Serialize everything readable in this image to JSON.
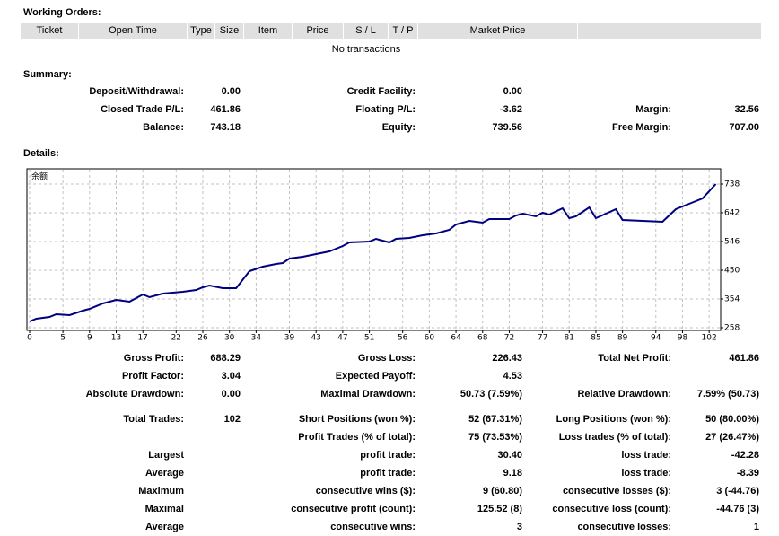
{
  "working_orders": {
    "title": "Working Orders:",
    "headers": [
      "Ticket",
      "Open Time",
      "Type",
      "Size",
      "Item",
      "Price",
      "S / L",
      "T / P",
      "Market Price"
    ],
    "empty": "No transactions"
  },
  "summary": {
    "title": "Summary:",
    "rows": [
      [
        "Deposit/Withdrawal:",
        "0.00",
        "Credit Facility:",
        "0.00"
      ],
      [
        "Closed Trade P/L:",
        "461.86",
        "Floating P/L:",
        "-3.62",
        "Margin:",
        "32.56"
      ],
      [
        "Balance:",
        "743.18",
        "Equity:",
        "739.56",
        "Free Margin:",
        "707.00"
      ]
    ]
  },
  "details_title": "Details:",
  "chart_data": {
    "type": "line",
    "label": "余额",
    "x": [
      0,
      1,
      3,
      4,
      6,
      8,
      9,
      11,
      13,
      15,
      16,
      17,
      18,
      20,
      23,
      25,
      26,
      27,
      29,
      31,
      33,
      35,
      37,
      38,
      39,
      41,
      43,
      45,
      47,
      48,
      51,
      52,
      54,
      55,
      57,
      59,
      61,
      63,
      64,
      66,
      68,
      69,
      72,
      73,
      74,
      76,
      77,
      78,
      80,
      81,
      82,
      84,
      85,
      88,
      89,
      92,
      95,
      97,
      99,
      101,
      103
    ],
    "values": [
      279,
      288,
      294,
      303,
      300,
      315,
      321,
      339,
      351,
      345,
      357,
      369,
      360,
      372,
      378,
      384,
      393,
      399,
      390,
      390,
      447,
      462,
      471,
      474,
      489,
      495,
      504,
      513,
      531,
      543,
      546,
      555,
      543,
      555,
      558,
      567,
      573,
      585,
      603,
      615,
      609,
      621,
      621,
      633,
      639,
      630,
      642,
      636,
      657,
      624,
      630,
      660,
      624,
      654,
      618,
      615,
      612,
      654,
      672,
      690,
      738
    ],
    "color": "#000080",
    "xlim": [
      0,
      104
    ],
    "ylim": [
      249,
      789
    ],
    "xticks": [
      0,
      5,
      9,
      13,
      17,
      22,
      26,
      30,
      34,
      39,
      43,
      47,
      51,
      56,
      60,
      64,
      68,
      72,
      77,
      81,
      85,
      89,
      94,
      98,
      102
    ],
    "yticks": [
      258,
      354,
      450,
      546,
      642,
      738
    ],
    "grid": true
  },
  "stats": {
    "rows": [
      [
        "Gross Profit:",
        "688.29",
        "Gross Loss:",
        "226.43",
        "Total Net Profit:",
        "461.86"
      ],
      [
        "Profit Factor:",
        "3.04",
        "Expected Payoff:",
        "4.53"
      ],
      [
        "Absolute Drawdown:",
        "0.00",
        "Maximal Drawdown:",
        "50.73 (7.59%)",
        "Relative Drawdown:",
        "7.59% (50.73)"
      ],
      [
        "Total Trades:",
        "102",
        "Short Positions (won %):",
        "52 (67.31%)",
        "Long Positions (won %):",
        "50 (80.00%)"
      ],
      [
        null,
        null,
        "Profit Trades (% of total):",
        "75 (73.53%)",
        "Loss trades (% of total):",
        "27 (26.47%)"
      ],
      [
        "Largest",
        null,
        "profit trade:",
        "30.40",
        "loss trade:",
        "-42.28"
      ],
      [
        "Average",
        null,
        "profit trade:",
        "9.18",
        "loss trade:",
        "-8.39"
      ],
      [
        "Maximum",
        null,
        "consecutive wins ($):",
        "9 (60.80)",
        "consecutive losses ($):",
        "3 (-44.76)"
      ],
      [
        "Maximal",
        null,
        "consecutive profit (count):",
        "125.52 (8)",
        "consecutive loss (count):",
        "-44.76 (3)"
      ],
      [
        "Average",
        null,
        "consecutive wins:",
        "3",
        "consecutive losses:",
        "1"
      ]
    ]
  }
}
